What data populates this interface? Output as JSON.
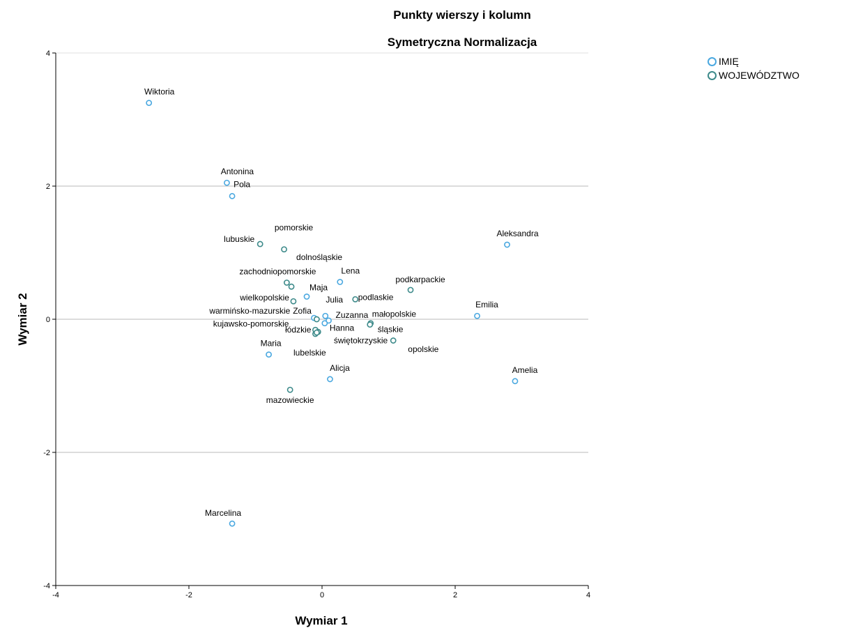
{
  "chart_data": {
    "type": "scatter",
    "title": "Punkty wierszy i kolumn",
    "subtitle": "Symetryczna Normalizacja",
    "xlabel": "Wymiar 1",
    "ylabel": "Wymiar 2",
    "xlim": [
      -4,
      4
    ],
    "ylim": [
      -4,
      4
    ],
    "xticks": [
      "-4",
      "-2",
      "0",
      "2",
      "4"
    ],
    "yticks": [
      "-4",
      "-2",
      "0",
      "2",
      "4"
    ],
    "grid": "horizontal reference lines at y = -2, 0, 2",
    "legend_position": "top-right",
    "series": [
      {
        "name": "IMIĘ",
        "color": "#4aa8e0",
        "points": [
          {
            "label": "Wiktoria",
            "x": -2.6,
            "y": 3.25
          },
          {
            "label": "Antonina",
            "x": -1.43,
            "y": 2.05
          },
          {
            "label": "Pola",
            "x": -1.35,
            "y": 1.85
          },
          {
            "label": "Aleksandra",
            "x": 2.78,
            "y": 1.12
          },
          {
            "label": "Lena",
            "x": 0.27,
            "y": 0.56
          },
          {
            "label": "Maja",
            "x": -0.23,
            "y": 0.34
          },
          {
            "label": "Julia",
            "x": 0.05,
            "y": 0.05
          },
          {
            "label": "Zofia",
            "x": -0.12,
            "y": 0.02
          },
          {
            "label": "Zuzanna",
            "x": 0.1,
            "y": -0.02
          },
          {
            "label": "Hanna",
            "x": 0.04,
            "y": -0.06
          },
          {
            "label": "Emilia",
            "x": 2.33,
            "y": 0.05
          },
          {
            "label": "Maria",
            "x": -0.8,
            "y": -0.53
          },
          {
            "label": "Alicja",
            "x": 0.12,
            "y": -0.9
          },
          {
            "label": "Amelia",
            "x": 2.9,
            "y": -0.93
          },
          {
            "label": "Marcelina",
            "x": -1.35,
            "y": -3.07
          }
        ]
      },
      {
        "name": "WOJEWÓDZTWO",
        "color": "#3d8a8a",
        "points": [
          {
            "label": "lubuskie",
            "x": -0.93,
            "y": 1.13
          },
          {
            "label": "pomorskie",
            "x": -0.57,
            "y": 1.05
          },
          {
            "label": "dolnośląskie",
            "x": -0.46,
            "y": 0.49
          },
          {
            "label": "zachodniopomorskie",
            "x": -0.53,
            "y": 0.55
          },
          {
            "label": "podkarpackie",
            "x": 1.33,
            "y": 0.44
          },
          {
            "label": "wielkopolskie",
            "x": -0.43,
            "y": 0.27
          },
          {
            "label": "podlaskie",
            "x": 0.5,
            "y": 0.3
          },
          {
            "label": "warmińsko-mazurskie",
            "x": -0.08,
            "y": 0.0
          },
          {
            "label": "małopolskie",
            "x": 0.73,
            "y": -0.06
          },
          {
            "label": "śląskie",
            "x": 0.72,
            "y": -0.08
          },
          {
            "label": "kujawsko-pomorskie",
            "x": -0.1,
            "y": -0.16
          },
          {
            "label": "łódzkie",
            "x": -0.1,
            "y": -0.22
          },
          {
            "label": "świętokrzyskie",
            "x": 1.07,
            "y": -0.32
          },
          {
            "label": "opolskie",
            "x": -0.06,
            "y": -0.19
          },
          {
            "label": "lubelskie",
            "x": -0.08,
            "y": -0.2
          },
          {
            "label": "mazowieckie",
            "x": -0.48,
            "y": -1.06
          }
        ]
      }
    ]
  }
}
